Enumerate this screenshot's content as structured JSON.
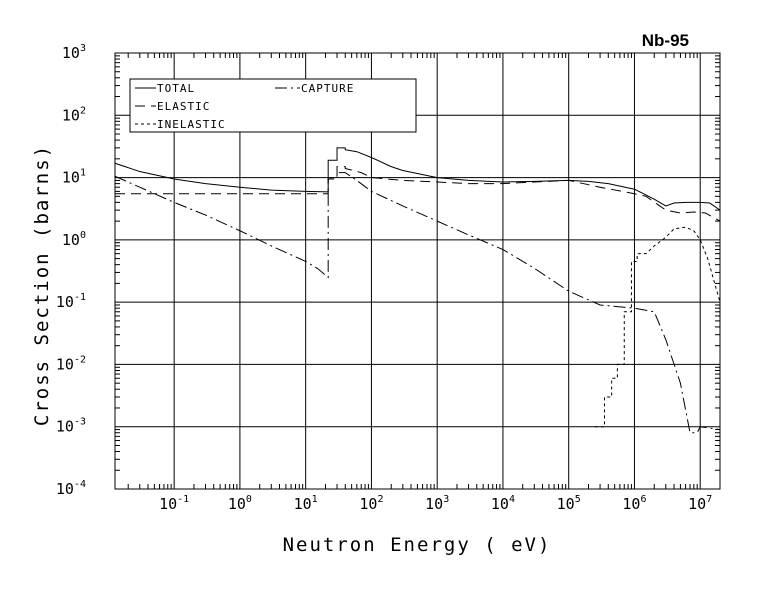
{
  "chart_data": {
    "type": "line",
    "title": "Nb-95",
    "xlabel": "Neutron Energy ( eV)",
    "ylabel": "Cross Section (barns)",
    "xscale": "log",
    "yscale": "log",
    "xlim": [
      0.0126,
      20000000
    ],
    "ylim": [
      0.0001,
      1000
    ],
    "grid": true,
    "legend_position": "top-left",
    "x_ticks": [
      {
        "base": "10",
        "exp": "-1"
      },
      {
        "base": "10",
        "exp": "0"
      },
      {
        "base": "10",
        "exp": "1"
      },
      {
        "base": "10",
        "exp": "2"
      },
      {
        "base": "10",
        "exp": "3"
      },
      {
        "base": "10",
        "exp": "4"
      },
      {
        "base": "10",
        "exp": "5"
      },
      {
        "base": "10",
        "exp": "6"
      },
      {
        "base": "10",
        "exp": "7"
      }
    ],
    "y_ticks": [
      {
        "base": "10",
        "exp": "-4"
      },
      {
        "base": "10",
        "exp": "-3"
      },
      {
        "base": "10",
        "exp": "-2"
      },
      {
        "base": "10",
        "exp": "-1"
      },
      {
        "base": "10",
        "exp": "0"
      },
      {
        "base": "10",
        "exp": "1"
      },
      {
        "base": "10",
        "exp": "2"
      },
      {
        "base": "10",
        "exp": "3"
      }
    ],
    "series": [
      {
        "name": "TOTAL",
        "dash": "none",
        "points": [
          [
            0.0126,
            17
          ],
          [
            0.03,
            12.5
          ],
          [
            0.1,
            9.5
          ],
          [
            0.3,
            8
          ],
          [
            1,
            7
          ],
          [
            3,
            6.3
          ],
          [
            10,
            6
          ],
          [
            22,
            5.9
          ],
          [
            22,
            19
          ],
          [
            30,
            19
          ],
          [
            30,
            30
          ],
          [
            40,
            30
          ],
          [
            40,
            28
          ],
          [
            60,
            26
          ],
          [
            100,
            21
          ],
          [
            200,
            15
          ],
          [
            300,
            13
          ],
          [
            1000,
            10
          ],
          [
            3000,
            9
          ],
          [
            10000,
            8.5
          ],
          [
            30000,
            8.7
          ],
          [
            100000,
            9
          ],
          [
            200000,
            8.7
          ],
          [
            400000,
            8
          ],
          [
            1000000,
            6.5
          ],
          [
            2000000,
            4.5
          ],
          [
            3000000,
            3.5
          ],
          [
            4000000,
            3.9
          ],
          [
            6000000,
            4
          ],
          [
            8000000,
            4
          ],
          [
            10000000,
            4
          ],
          [
            14000000,
            3.9
          ],
          [
            20000000,
            3
          ]
        ]
      },
      {
        "name": "ELASTIC",
        "dash": "10,6",
        "points": [
          [
            0.0126,
            5.5
          ],
          [
            1,
            5.5
          ],
          [
            10,
            5.5
          ],
          [
            22,
            5.5
          ],
          [
            22,
            9.5
          ],
          [
            30,
            9.5
          ],
          [
            30,
            15
          ],
          [
            40,
            15
          ],
          [
            40,
            14
          ],
          [
            70,
            12
          ],
          [
            100,
            10
          ],
          [
            300,
            9
          ],
          [
            1000,
            8.5
          ],
          [
            3000,
            8
          ],
          [
            10000,
            8
          ],
          [
            30000,
            8.5
          ],
          [
            100000,
            9
          ],
          [
            300000,
            7
          ],
          [
            1000000,
            5.5
          ],
          [
            1500000,
            5
          ],
          [
            3000000,
            3
          ],
          [
            5000000,
            2.7
          ],
          [
            8000000,
            2.8
          ],
          [
            12000000,
            2.7
          ],
          [
            20000000,
            2
          ]
        ]
      },
      {
        "name": "INELASTIC",
        "dash": "3,3",
        "points": [
          [
            250000,
            0.001
          ],
          [
            350000,
            0.001
          ],
          [
            350000,
            0.003
          ],
          [
            450000,
            0.003
          ],
          [
            450000,
            0.006
          ],
          [
            550000,
            0.006
          ],
          [
            550000,
            0.01
          ],
          [
            700000,
            0.01
          ],
          [
            700000,
            0.07
          ],
          [
            900000,
            0.07
          ],
          [
            900000,
            0.45
          ],
          [
            1100000,
            0.45
          ],
          [
            1100000,
            0.6
          ],
          [
            1500000,
            0.6
          ],
          [
            2000000,
            0.8
          ],
          [
            3000000,
            1.1
          ],
          [
            4000000,
            1.5
          ],
          [
            6000000,
            1.6
          ],
          [
            8000000,
            1.4
          ],
          [
            10000000,
            1
          ],
          [
            13000000,
            0.5
          ],
          [
            20000000,
            0.1
          ]
        ]
      },
      {
        "name": "CAPTURE",
        "dash": "12,4,2,4",
        "points": [
          [
            0.0126,
            10.5
          ],
          [
            0.03,
            7
          ],
          [
            0.1,
            4
          ],
          [
            0.3,
            2.5
          ],
          [
            1,
            1.4
          ],
          [
            3,
            0.8
          ],
          [
            10,
            0.45
          ],
          [
            15,
            0.35
          ],
          [
            22,
            0.25
          ],
          [
            22,
            10
          ],
          [
            30,
            10
          ],
          [
            30,
            12
          ],
          [
            40,
            12
          ],
          [
            60,
            9
          ],
          [
            100,
            6
          ],
          [
            300,
            3.5
          ],
          [
            1000,
            2
          ],
          [
            3000,
            1.2
          ],
          [
            10000,
            0.7
          ],
          [
            30000,
            0.35
          ],
          [
            100000,
            0.15
          ],
          [
            300000,
            0.09
          ],
          [
            1000000,
            0.08
          ],
          [
            2000000,
            0.07
          ],
          [
            3000000,
            0.025
          ],
          [
            5000000,
            0.005
          ],
          [
            7000000,
            0.0008
          ],
          [
            9000000,
            0.0008
          ],
          [
            10000000,
            0.001
          ],
          [
            20000000,
            0.0009
          ]
        ]
      }
    ]
  }
}
